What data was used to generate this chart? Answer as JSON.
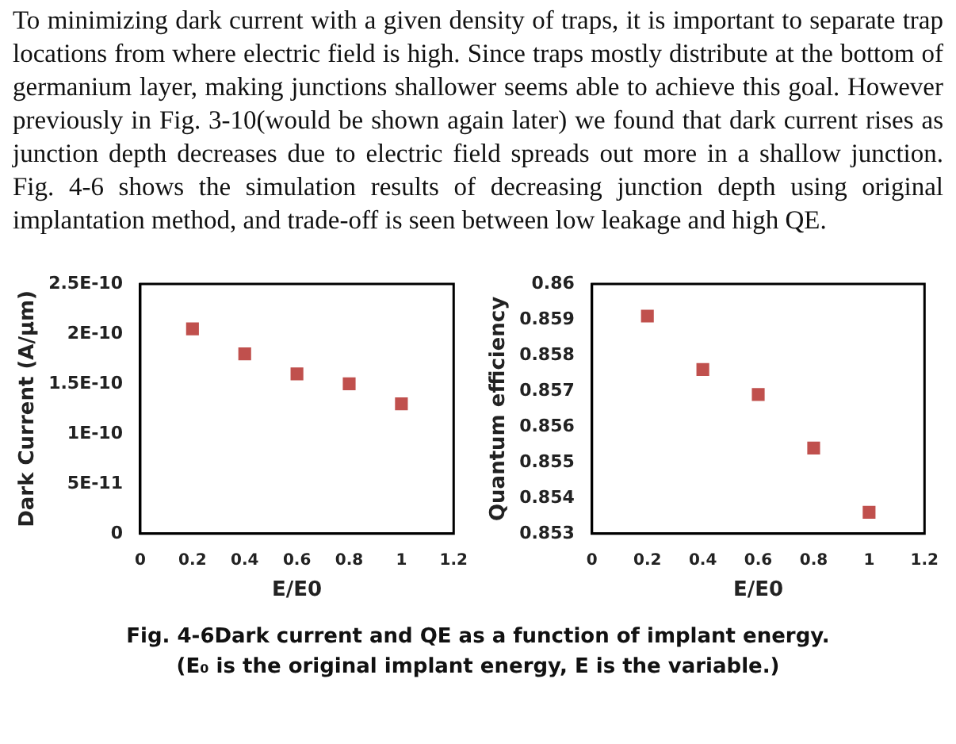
{
  "chart_data": [
    {
      "type": "scatter",
      "xlabel": "E/E0",
      "ylabel": "Dark Current (A/μm)",
      "x": [
        0.2,
        0.4,
        0.6,
        0.8,
        1
      ],
      "series": [
        {
          "color": "#c0504d",
          "values": [
            2.05e-10,
            1.8e-10,
            1.6e-10,
            1.5e-10,
            1.3e-10
          ]
        }
      ],
      "marker": "square",
      "grid": false,
      "legend": false,
      "xlim": [
        0,
        1.2
      ],
      "xticks": [
        0,
        0.2,
        0.4,
        0.6,
        0.8,
        1,
        1.2
      ],
      "ylim": [
        0,
        2.5e-10
      ],
      "yticks": [
        0,
        {
          "value": 5e-11,
          "label": "5E-11"
        },
        {
          "value": 1e-10,
          "label": "1E-10"
        },
        {
          "value": 1.5e-10,
          "label": "1.5E-10"
        },
        {
          "value": 2e-10,
          "label": "2E-10"
        },
        {
          "value": 2.5e-10,
          "label": "2.5E-10"
        }
      ],
      "annotations": [
        "To minimizing dark current with a given density of traps, it is important to separate trap locations from where electric field is high. Since traps mostly distribute at the bottom of germanium layer, making junctions shallower seems able to achieve this goal. However previously in Fig. 3-10(would be shown again later) we found that dark current rises as junction depth decreases due to electric field spreads out more in a shallow junction. Fig. 4-6 shows the simulation results of decreasing junction depth using original implantation method, and trade-off is seen between low leakage and high QE.",
        "Fig. 4-6Dark current and QE as a function of implant energy.",
        "(E₀ is the original implant energy, E is the variable.)"
      ]
    },
    {
      "type": "scatter",
      "xlabel": "E/E0",
      "ylabel": "Quantum efficiency",
      "x": [
        0.2,
        0.4,
        0.6,
        0.8,
        1
      ],
      "series": [
        {
          "color": "#c0504d",
          "values": [
            0.8591,
            0.8576,
            0.8569,
            0.8554,
            0.8536
          ]
        }
      ],
      "marker": "square",
      "grid": false,
      "legend": false,
      "xlim": [
        0,
        1.2
      ],
      "xticks": [
        0,
        0.2,
        0.4,
        0.6,
        0.8,
        1,
        1.2
      ],
      "ylim": [
        0.853,
        0.86
      ],
      "yticks": [
        0.853,
        0.854,
        0.855,
        0.856,
        0.857,
        0.858,
        0.859,
        0.86
      ]
    }
  ]
}
